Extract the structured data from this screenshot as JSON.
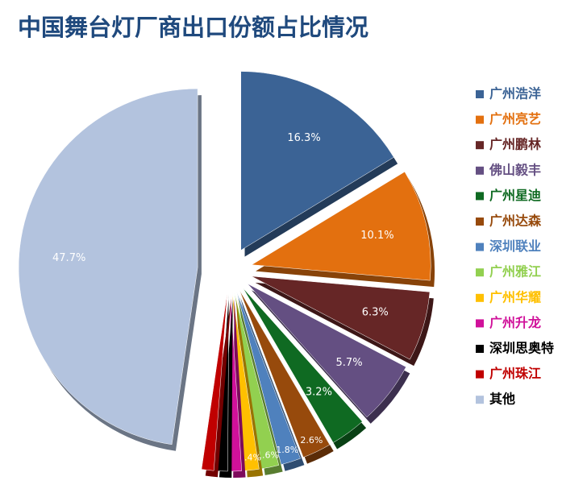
{
  "chart_data": {
    "type": "pie",
    "title": "中国舞台灯厂商出口份额占比情况",
    "categories": [
      "广州浩洋",
      "广州亮艺",
      "广州鹏林",
      "佛山毅丰",
      "广州星迪",
      "广州达森",
      "深圳联业",
      "广州雅江",
      "广州华耀",
      "广州升龙",
      "深圳思奥特",
      "广州珠江",
      "其他"
    ],
    "values": [
      16.3,
      10.1,
      6.3,
      5.7,
      3.2,
      2.6,
      1.8,
      1.6,
      1.4,
      1.1,
      1.1,
      1.1,
      47.7
    ],
    "value_labels": [
      "16.3%",
      "10.1%",
      "6.3%",
      "5.7%",
      "3.2%",
      "2.6%",
      "1.8%",
      "1.6%",
      "1.4%",
      null,
      null,
      null,
      "47.7%"
    ],
    "colors": [
      "#3b6395",
      "#e3700f",
      "#662626",
      "#644f82",
      "#0f6a22",
      "#974a0c",
      "#4f81bd",
      "#92d050",
      "#ffc000",
      "#d0119a",
      "#000000",
      "#c00000",
      "#b3c3de"
    ],
    "legend": "right"
  }
}
